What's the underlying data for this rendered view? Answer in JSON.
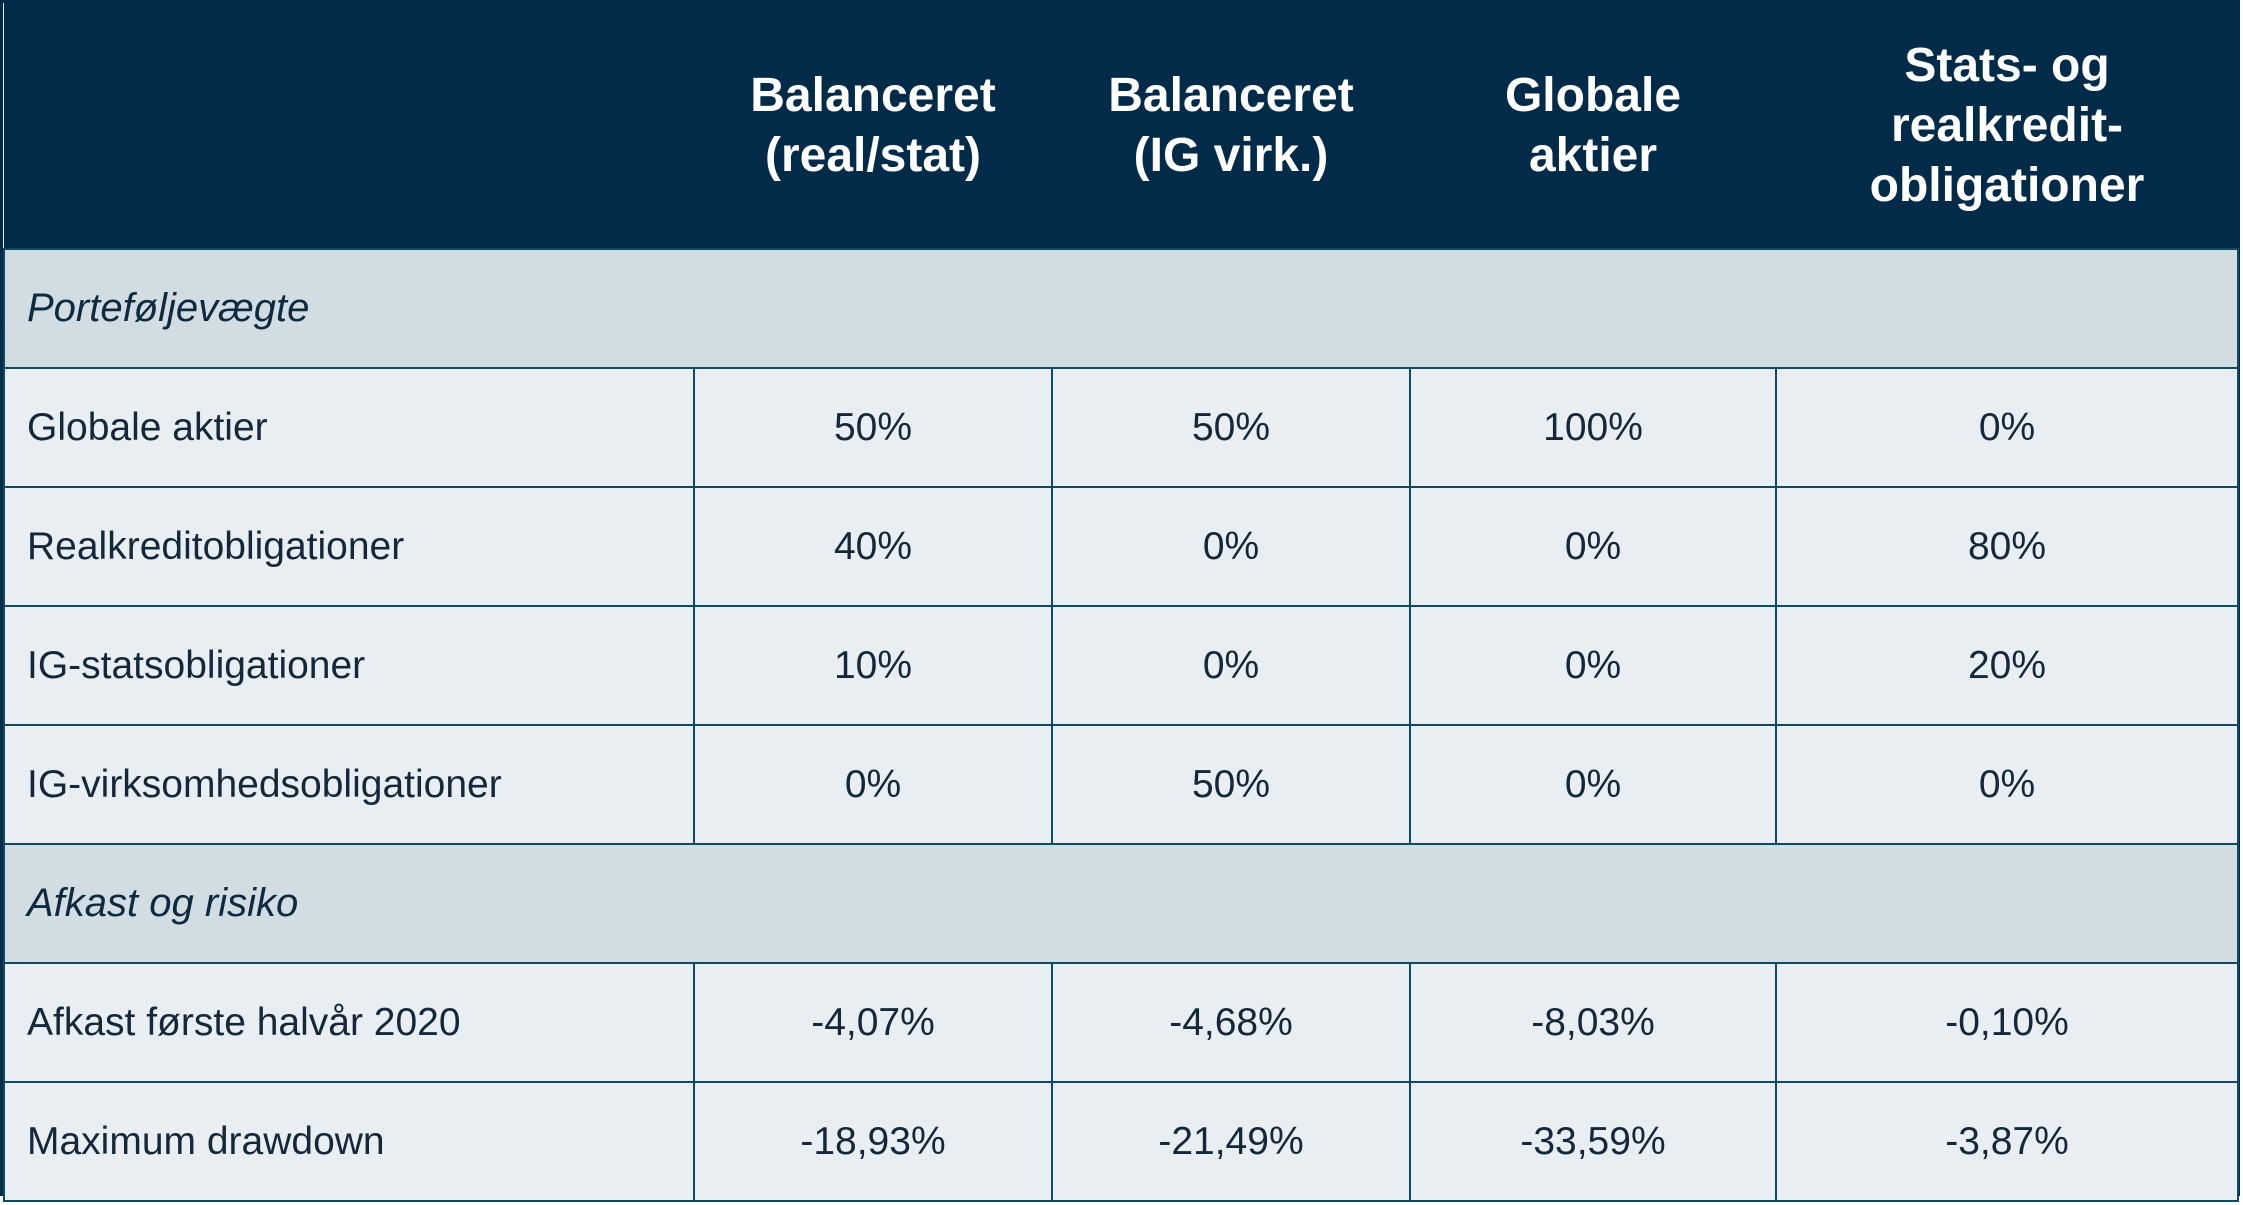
{
  "header": {
    "columns": [
      "",
      "Balanceret (real/stat)",
      "Balanceret (IG virk.)",
      "Globale aktier",
      "Stats- og realkredit-obligationer"
    ],
    "lines": [
      [],
      [
        "Balanceret",
        "(real/stat)"
      ],
      [
        "Balanceret",
        "(IG virk.)"
      ],
      [
        "Globale",
        "aktier"
      ],
      [
        "Stats- og",
        "realkredit-",
        "obligationer"
      ]
    ]
  },
  "sections": [
    {
      "title": "Porteføljevægte",
      "rows": [
        {
          "label": "Globale aktier",
          "values": [
            "50%",
            "50%",
            "100%",
            "0%"
          ]
        },
        {
          "label": "Realkreditobligationer",
          "values": [
            "40%",
            "0%",
            "0%",
            "80%"
          ]
        },
        {
          "label": "IG-statsobligationer",
          "values": [
            "10%",
            "0%",
            "0%",
            "20%"
          ]
        },
        {
          "label": "IG-virksomhedsobligationer",
          "values": [
            "0%",
            "50%",
            "0%",
            "0%"
          ]
        }
      ]
    },
    {
      "title": "Afkast og risiko",
      "rows": [
        {
          "label": "Afkast første halvår 2020",
          "values": [
            "-4,07%",
            "-4,68%",
            "-8,03%",
            "-0,10%"
          ]
        },
        {
          "label": "Maximum drawdown",
          "values": [
            "-18,93%",
            "-21,49%",
            "-33,59%",
            "-3,87%"
          ]
        }
      ]
    }
  ],
  "colors": {
    "header_bg": "#022b4a",
    "section_bg": "#d2dde3",
    "cell_bg": "#e8eef2",
    "grid": "#0f4a63"
  }
}
